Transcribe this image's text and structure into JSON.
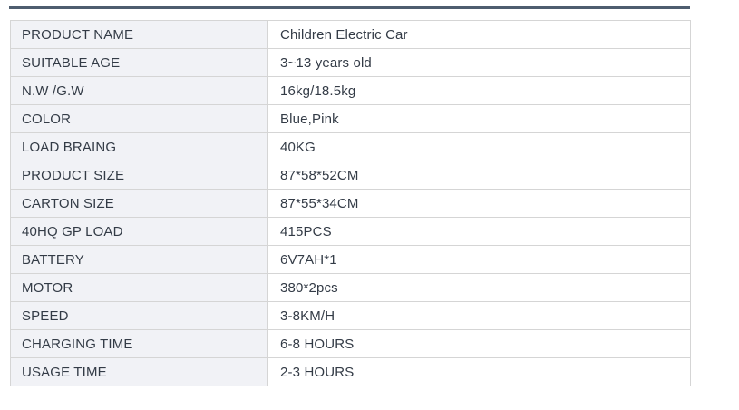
{
  "colors": {
    "accent_rule": "#4e5d6f",
    "label_cell_bg": "#f1f2f6",
    "border": "#d5d5d5",
    "text": "#333b46"
  },
  "spec_table": {
    "rows": [
      {
        "label": "PRODUCT NAME",
        "value": "Children Electric Car"
      },
      {
        "label": "SUITABLE AGE",
        "value": "3~13 years old"
      },
      {
        "label": "N.W /G.W",
        "value": "16kg/18.5kg"
      },
      {
        "label": "COLOR",
        "value": "Blue,Pink"
      },
      {
        "label": "LOAD BRAING",
        "value": "40KG"
      },
      {
        "label": "PRODUCT SIZE",
        "value": "87*58*52CM"
      },
      {
        "label": "CARTON SIZE",
        "value": "87*55*34CM"
      },
      {
        "label": "40HQ GP LOAD",
        "value": "415PCS"
      },
      {
        "label": "BATTERY",
        "value": "6V7AH*1"
      },
      {
        "label": "MOTOR",
        "value": "380*2pcs"
      },
      {
        "label": "SPEED",
        "value": "3-8KM/H"
      },
      {
        "label": "CHARGING TIME",
        "value": "6-8 HOURS"
      },
      {
        "label": "USAGE TIME",
        "value": "2-3 HOURS"
      }
    ]
  }
}
